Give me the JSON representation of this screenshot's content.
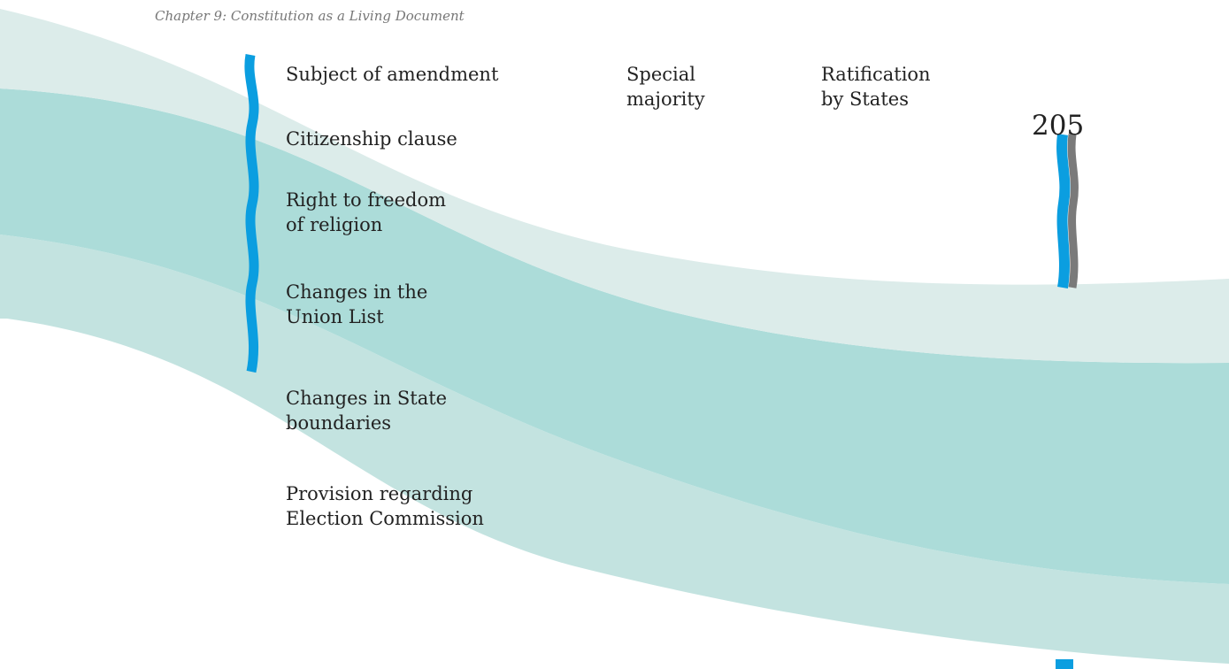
{
  "header": {
    "chapter": "Chapter 9: Constitution as a Living Document",
    "page_number": "205"
  },
  "table": {
    "columns": [
      [
        "Subject of amendment"
      ],
      [
        "Special",
        "majority"
      ],
      [
        "Ratification",
        "by States"
      ]
    ],
    "rows": [
      [
        "Citizenship clause"
      ],
      [
        "Right to freedom",
        "of religion"
      ],
      [
        "Changes in the",
        "Union List"
      ],
      [
        "Changes in State",
        "boundaries"
      ],
      [
        "Provision regarding",
        "Election Commission"
      ]
    ]
  }
}
